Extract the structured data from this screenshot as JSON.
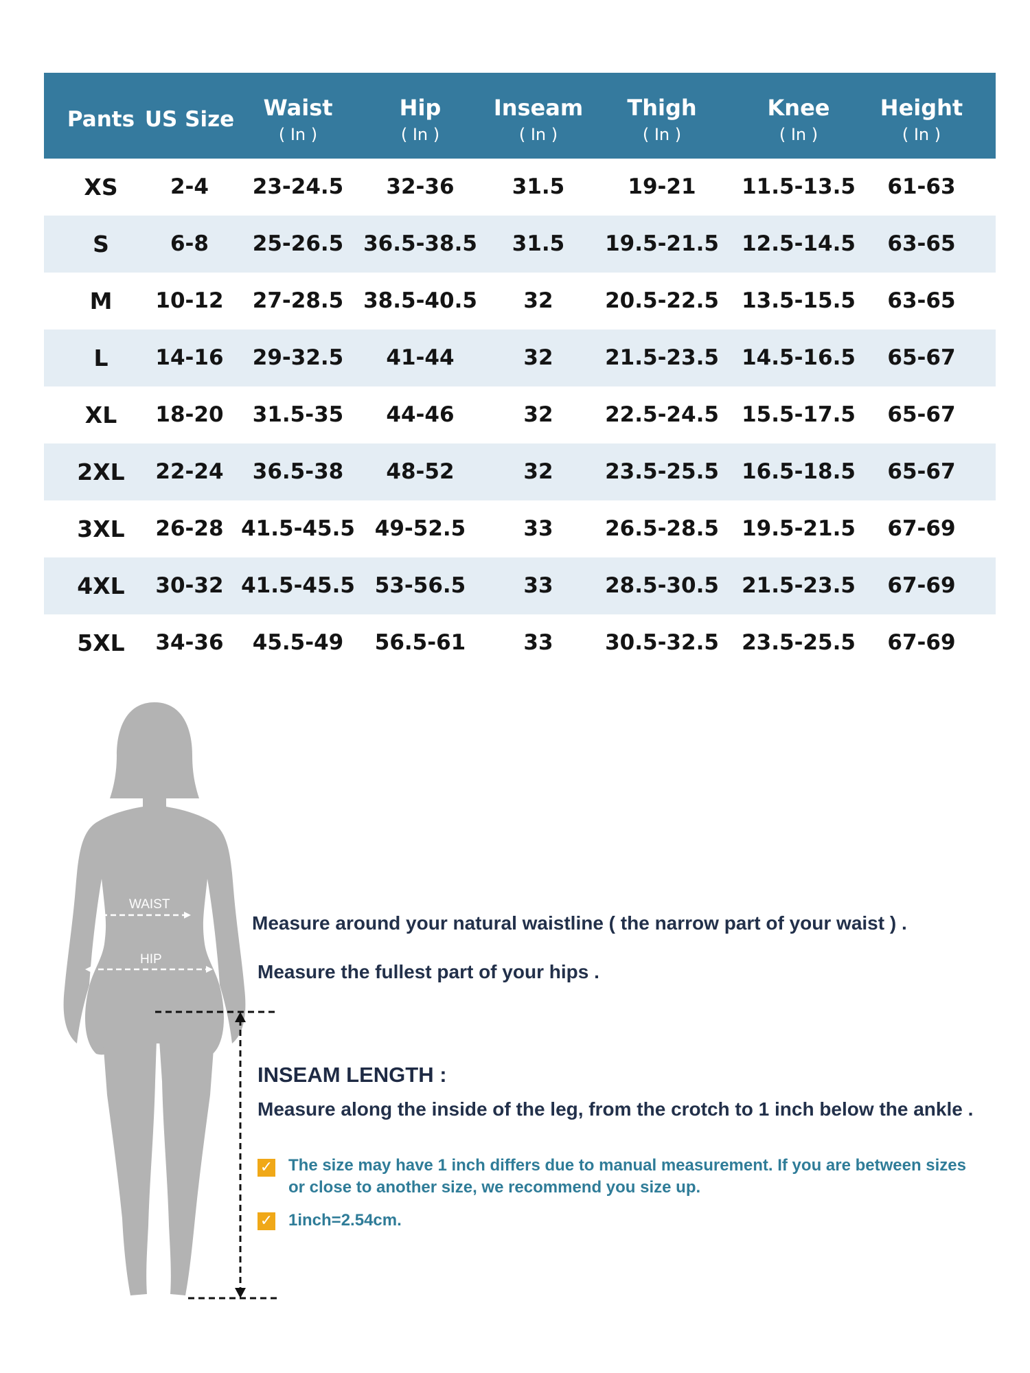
{
  "table": {
    "headers": [
      {
        "title": "Pants",
        "unit": ""
      },
      {
        "title": "US Size",
        "unit": ""
      },
      {
        "title": "Waist",
        "unit": "( In )"
      },
      {
        "title": "Hip",
        "unit": "( In )"
      },
      {
        "title": "Inseam",
        "unit": "( In )"
      },
      {
        "title": "Thigh",
        "unit": "( In )"
      },
      {
        "title": "Knee",
        "unit": "( In )"
      },
      {
        "title": "Height",
        "unit": "( In )"
      }
    ],
    "rows": [
      [
        "XS",
        "2-4",
        "23-24.5",
        "32-36",
        "31.5",
        "19-21",
        "11.5-13.5",
        "61-63"
      ],
      [
        "S",
        "6-8",
        "25-26.5",
        "36.5-38.5",
        "31.5",
        "19.5-21.5",
        "12.5-14.5",
        "63-65"
      ],
      [
        "M",
        "10-12",
        "27-28.5",
        "38.5-40.5",
        "32",
        "20.5-22.5",
        "13.5-15.5",
        "63-65"
      ],
      [
        "L",
        "14-16",
        "29-32.5",
        "41-44",
        "32",
        "21.5-23.5",
        "14.5-16.5",
        "65-67"
      ],
      [
        "XL",
        "18-20",
        "31.5-35",
        "44-46",
        "32",
        "22.5-24.5",
        "15.5-17.5",
        "65-67"
      ],
      [
        "2XL",
        "22-24",
        "36.5-38",
        "48-52",
        "32",
        "23.5-25.5",
        "16.5-18.5",
        "65-67"
      ],
      [
        "3XL",
        "26-28",
        "41.5-45.5",
        "49-52.5",
        "33",
        "26.5-28.5",
        "19.5-21.5",
        "67-69"
      ],
      [
        "4XL",
        "30-32",
        "41.5-45.5",
        "53-56.5",
        "33",
        "28.5-30.5",
        "21.5-23.5",
        "67-69"
      ],
      [
        "5XL",
        "34-36",
        "45.5-49",
        "56.5-61",
        "33",
        "30.5-32.5",
        "23.5-25.5",
        "67-69"
      ]
    ]
  },
  "colors": {
    "header_bg": "#357a9e",
    "alt_row_bg": "#e4edf4",
    "figure_gray": "#b3b3b3",
    "check_orange": "#f0a818",
    "note_teal": "#2f7c98",
    "text_navy": "#22304a"
  },
  "figure": {
    "waist_label": "WAIST",
    "hip_label": "HIP"
  },
  "instructions": {
    "waist": "Measure around your natural waistline ( the narrow part of your waist ) .",
    "hip": "Measure the fullest part of your hips .",
    "inseam_title": "INSEAM LENGTH :",
    "inseam": "Measure along the inside of the leg, from the crotch to 1 inch  below the ankle ."
  },
  "notes": [
    {
      "icon": "checkmark-icon",
      "text": "The size may have 1 inch differs due to manual measurement. If you are between sizes or close to another size, we recommend you size up."
    },
    {
      "icon": "checkmark-icon",
      "text": "1inch=2.54cm."
    }
  ]
}
